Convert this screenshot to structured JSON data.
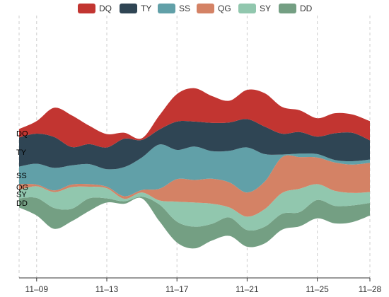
{
  "chart_data": {
    "type": "area",
    "stacked": true,
    "stream_layout": "silhouette",
    "legend_position": "top-center",
    "grid": "vertical dashed at x ticks",
    "title": "",
    "xlabel": "",
    "ylabel": "",
    "x": [
      "2015/11/08",
      "2015/11/09",
      "2015/11/10",
      "2015/11/11",
      "2015/11/12",
      "2015/11/13",
      "2015/11/14",
      "2015/11/15",
      "2015/11/16",
      "2015/11/17",
      "2015/11/18",
      "2015/11/19",
      "2015/11/20",
      "2015/11/21",
      "2015/11/22",
      "2015/11/23",
      "2015/11/24",
      "2015/11/25",
      "2015/11/26",
      "2015/11/27",
      "2015/11/28"
    ],
    "x_ticks": [
      "11–09",
      "11–13",
      "11–17",
      "11–21",
      "11–25",
      "11–28"
    ],
    "series": [
      {
        "name": "DQ",
        "color": "#c23531",
        "values": [
          10,
          15,
          35,
          38,
          22,
          16,
          7,
          2,
          17,
          33,
          40,
          32,
          26,
          35,
          40,
          32,
          26,
          22,
          24,
          22,
          23
        ]
      },
      {
        "name": "TY",
        "color": "#2f4554",
        "values": [
          35,
          36,
          37,
          22,
          24,
          26,
          34,
          21,
          18,
          34,
          30,
          34,
          34,
          34,
          33,
          25,
          26,
          21,
          32,
          34,
          23
        ]
      },
      {
        "name": "SS",
        "color": "#61a0a8",
        "values": [
          21,
          25,
          27,
          23,
          24,
          21,
          35,
          39,
          53,
          35,
          40,
          33,
          38,
          54,
          33,
          3,
          4,
          4,
          3,
          4,
          4
        ]
      },
      {
        "name": "QG",
        "color": "#d48265",
        "values": [
          7,
          2,
          2,
          3,
          3,
          2,
          3,
          3,
          14,
          27,
          27,
          30,
          30,
          29,
          33,
          43,
          38,
          32,
          34,
          34,
          35
        ]
      },
      {
        "name": "SY",
        "color": "#91c7ae",
        "values": [
          10,
          14,
          19,
          26,
          14,
          12,
          3,
          5,
          5,
          24,
          29,
          24,
          12,
          16,
          21,
          25,
          28,
          19,
          18,
          15,
          13
        ]
      },
      {
        "name": "DD",
        "color": "#749f83",
        "values": [
          11,
          21,
          25,
          15,
          15,
          5,
          3,
          2,
          20,
          25,
          26,
          20,
          22,
          20,
          20,
          19,
          17,
          22,
          21,
          20,
          15
        ]
      }
    ]
  }
}
